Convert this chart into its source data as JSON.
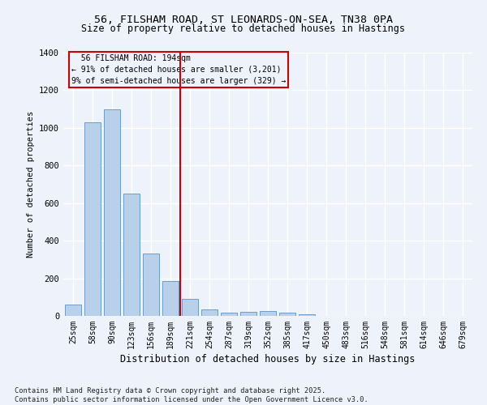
{
  "title_line1": "56, FILSHAM ROAD, ST LEONARDS-ON-SEA, TN38 0PA",
  "title_line2": "Size of property relative to detached houses in Hastings",
  "xlabel": "Distribution of detached houses by size in Hastings",
  "ylabel": "Number of detached properties",
  "categories": [
    "25sqm",
    "58sqm",
    "90sqm",
    "123sqm",
    "156sqm",
    "189sqm",
    "221sqm",
    "254sqm",
    "287sqm",
    "319sqm",
    "352sqm",
    "385sqm",
    "417sqm",
    "450sqm",
    "483sqm",
    "516sqm",
    "548sqm",
    "581sqm",
    "614sqm",
    "646sqm",
    "679sqm"
  ],
  "values": [
    62,
    1030,
    1100,
    650,
    330,
    185,
    90,
    35,
    18,
    20,
    25,
    18,
    10,
    0,
    0,
    0,
    0,
    0,
    0,
    0,
    0
  ],
  "bar_color": "#B8D0EA",
  "bar_edge_color": "#6090C0",
  "vline_color": "#CC0000",
  "vline_x": 5.5,
  "annotation_text": "  56 FILSHAM ROAD: 194sqm  \n← 91% of detached houses are smaller (3,201)\n9% of semi-detached houses are larger (329) →",
  "annotation_box_color": "#CC0000",
  "ylim": [
    0,
    1400
  ],
  "yticks": [
    0,
    200,
    400,
    600,
    800,
    1000,
    1200,
    1400
  ],
  "footer_line1": "Contains HM Land Registry data © Crown copyright and database right 2025.",
  "footer_line2": "Contains public sector information licensed under the Open Government Licence v3.0.",
  "background_color": "#EEF2FA",
  "grid_color": "#FFFFFF"
}
